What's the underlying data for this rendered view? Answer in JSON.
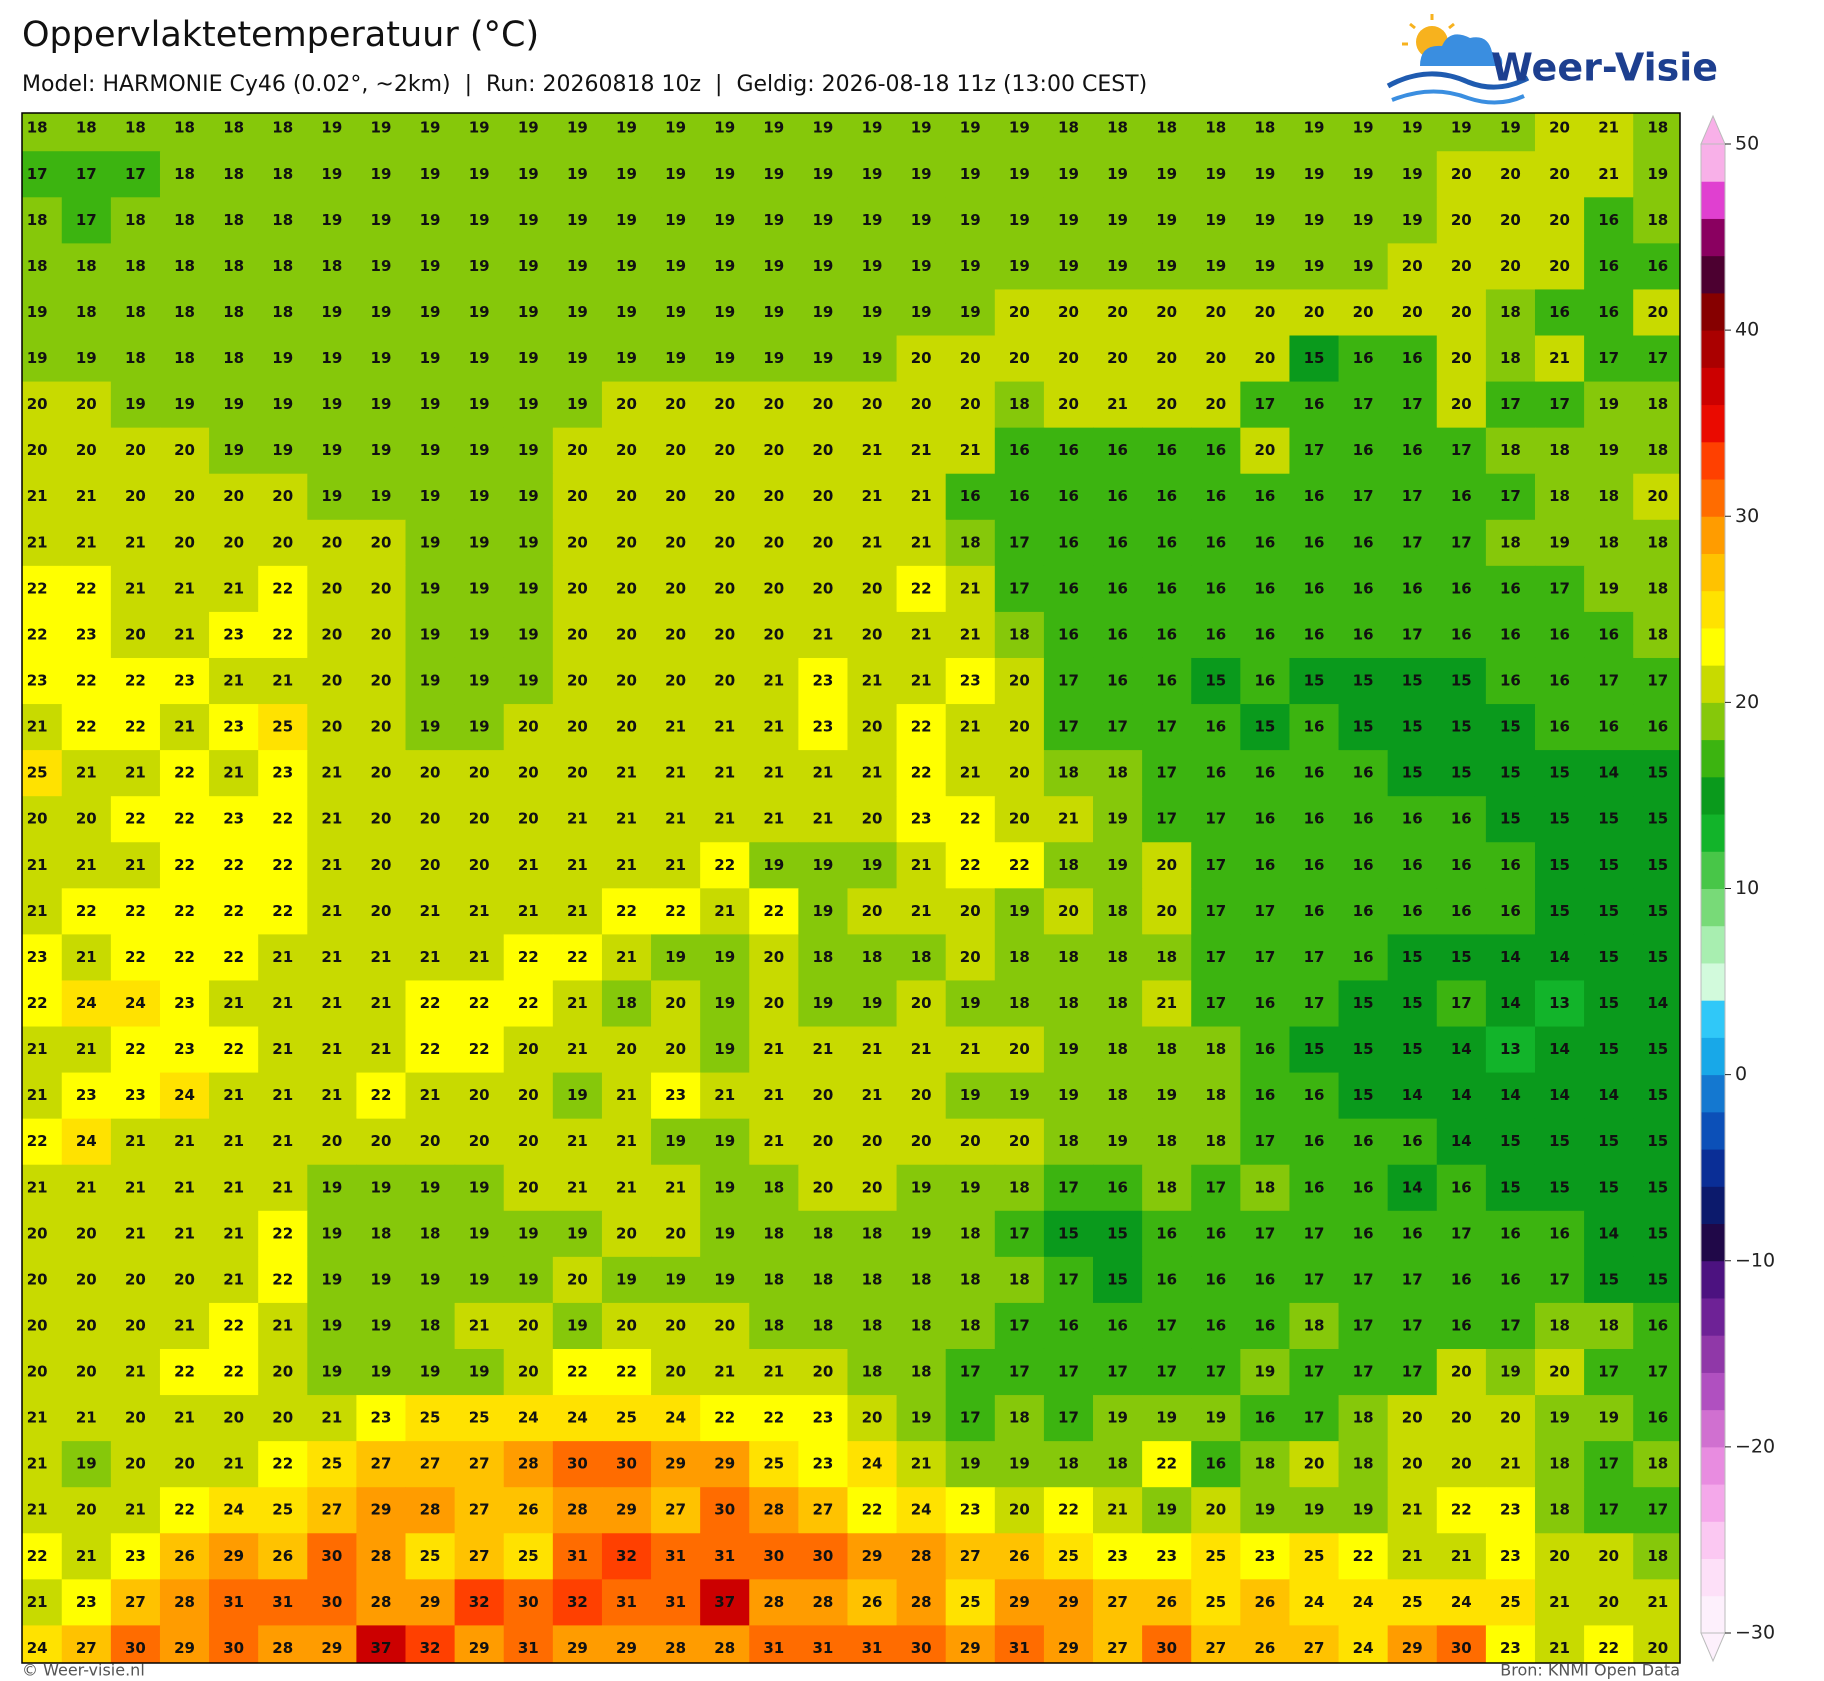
{
  "header": {
    "title": "Oppervlaktetemperatuur (°C)",
    "subtitle": "Model: HARMONIE Cy46 (0.02°, ~2km)  |  Run: 20260818 10z  |  Geldig: 2026-08-18 11z (13:00 CEST)"
  },
  "logo": {
    "text": "Weer-Visie"
  },
  "map": {
    "rows": [
      [
        18,
        18,
        18,
        18,
        18,
        18,
        19,
        19,
        19,
        19,
        19,
        19,
        19,
        19,
        19,
        19,
        19,
        19,
        19,
        19,
        19,
        18,
        18,
        18,
        18,
        18,
        19,
        19,
        19,
        19,
        19,
        20,
        21,
        18
      ],
      [
        17,
        17,
        17,
        18,
        18,
        18,
        19,
        19,
        19,
        19,
        19,
        19,
        19,
        19,
        19,
        19,
        19,
        19,
        19,
        19,
        19,
        19,
        19,
        19,
        19,
        19,
        19,
        19,
        19,
        20,
        20,
        20,
        21,
        19
      ],
      [
        18,
        17,
        18,
        18,
        18,
        18,
        19,
        19,
        19,
        19,
        19,
        19,
        19,
        19,
        19,
        19,
        19,
        19,
        19,
        19,
        19,
        19,
        19,
        19,
        19,
        19,
        19,
        19,
        19,
        20,
        20,
        20,
        16,
        18
      ],
      [
        18,
        18,
        18,
        18,
        18,
        18,
        18,
        19,
        19,
        19,
        19,
        19,
        19,
        19,
        19,
        19,
        19,
        19,
        19,
        19,
        19,
        19,
        19,
        19,
        19,
        19,
        19,
        19,
        20,
        20,
        20,
        20,
        16,
        16
      ],
      [
        19,
        18,
        18,
        18,
        18,
        18,
        19,
        19,
        19,
        19,
        19,
        19,
        19,
        19,
        19,
        19,
        19,
        19,
        19,
        19,
        20,
        20,
        20,
        20,
        20,
        20,
        20,
        20,
        20,
        20,
        18,
        16,
        16,
        20
      ],
      [
        19,
        19,
        18,
        18,
        18,
        19,
        19,
        19,
        19,
        19,
        19,
        19,
        19,
        19,
        19,
        19,
        19,
        19,
        20,
        20,
        20,
        20,
        20,
        20,
        20,
        20,
        15,
        16,
        16,
        20,
        18,
        21,
        17,
        17
      ],
      [
        20,
        20,
        19,
        19,
        19,
        19,
        19,
        19,
        19,
        19,
        19,
        19,
        20,
        20,
        20,
        20,
        20,
        20,
        20,
        20,
        18,
        20,
        21,
        20,
        20,
        17,
        16,
        17,
        17,
        20,
        17,
        17,
        19,
        18
      ],
      [
        20,
        20,
        20,
        20,
        19,
        19,
        19,
        19,
        19,
        19,
        19,
        20,
        20,
        20,
        20,
        20,
        20,
        21,
        21,
        21,
        16,
        16,
        16,
        16,
        16,
        20,
        17,
        16,
        16,
        17,
        18,
        18,
        19,
        18
      ],
      [
        21,
        21,
        20,
        20,
        20,
        20,
        19,
        19,
        19,
        19,
        19,
        20,
        20,
        20,
        20,
        20,
        20,
        21,
        21,
        16,
        16,
        16,
        16,
        16,
        16,
        16,
        16,
        17,
        17,
        16,
        17,
        18,
        18,
        20
      ],
      [
        21,
        21,
        21,
        20,
        20,
        20,
        20,
        20,
        19,
        19,
        19,
        20,
        20,
        20,
        20,
        20,
        20,
        21,
        21,
        18,
        17,
        16,
        16,
        16,
        16,
        16,
        16,
        16,
        17,
        17,
        18,
        19,
        18,
        18
      ],
      [
        22,
        22,
        21,
        21,
        21,
        22,
        20,
        20,
        19,
        19,
        19,
        20,
        20,
        20,
        20,
        20,
        20,
        20,
        22,
        21,
        17,
        16,
        16,
        16,
        16,
        16,
        16,
        16,
        16,
        16,
        16,
        17,
        19,
        18
      ],
      [
        22,
        23,
        20,
        21,
        23,
        22,
        20,
        20,
        19,
        19,
        19,
        20,
        20,
        20,
        20,
        20,
        21,
        20,
        21,
        21,
        18,
        16,
        16,
        16,
        16,
        16,
        16,
        16,
        17,
        16,
        16,
        16,
        16,
        18
      ],
      [
        23,
        22,
        22,
        23,
        21,
        21,
        20,
        20,
        19,
        19,
        19,
        20,
        20,
        20,
        20,
        21,
        23,
        21,
        21,
        23,
        20,
        17,
        16,
        16,
        15,
        16,
        15,
        15,
        15,
        15,
        16,
        16,
        17,
        17
      ],
      [
        21,
        22,
        22,
        21,
        23,
        25,
        20,
        20,
        19,
        19,
        20,
        20,
        20,
        21,
        21,
        21,
        23,
        20,
        22,
        21,
        20,
        17,
        17,
        17,
        16,
        15,
        16,
        15,
        15,
        15,
        15,
        16,
        16,
        16
      ],
      [
        25,
        21,
        21,
        22,
        21,
        23,
        21,
        20,
        20,
        20,
        20,
        20,
        21,
        21,
        21,
        21,
        21,
        21,
        22,
        21,
        20,
        18,
        18,
        17,
        16,
        16,
        16,
        16,
        15,
        15,
        15,
        15,
        14,
        15
      ],
      [
        20,
        20,
        22,
        22,
        23,
        22,
        21,
        20,
        20,
        20,
        20,
        21,
        21,
        21,
        21,
        21,
        21,
        20,
        23,
        22,
        20,
        21,
        19,
        17,
        17,
        16,
        16,
        16,
        16,
        16,
        15,
        15,
        15,
        15
      ],
      [
        21,
        21,
        21,
        22,
        22,
        22,
        21,
        20,
        20,
        20,
        21,
        21,
        21,
        21,
        22,
        19,
        19,
        19,
        21,
        22,
        22,
        18,
        19,
        20,
        17,
        16,
        16,
        16,
        16,
        16,
        16,
        15,
        15,
        15
      ],
      [
        21,
        22,
        22,
        22,
        22,
        22,
        21,
        20,
        21,
        21,
        21,
        21,
        22,
        22,
        21,
        22,
        19,
        20,
        21,
        20,
        19,
        20,
        18,
        20,
        17,
        17,
        16,
        16,
        16,
        16,
        16,
        15,
        15,
        15
      ],
      [
        23,
        21,
        22,
        22,
        22,
        21,
        21,
        21,
        21,
        21,
        22,
        22,
        21,
        19,
        19,
        20,
        18,
        18,
        18,
        20,
        18,
        18,
        18,
        18,
        17,
        17,
        17,
        16,
        15,
        15,
        14,
        14,
        15,
        15
      ],
      [
        22,
        24,
        24,
        23,
        21,
        21,
        21,
        21,
        22,
        22,
        22,
        21,
        18,
        20,
        19,
        20,
        19,
        19,
        20,
        19,
        18,
        18,
        18,
        21,
        17,
        16,
        17,
        15,
        15,
        17,
        14,
        13,
        15,
        14
      ],
      [
        21,
        21,
        22,
        23,
        22,
        21,
        21,
        21,
        22,
        22,
        20,
        21,
        20,
        20,
        19,
        21,
        21,
        21,
        21,
        21,
        20,
        19,
        18,
        18,
        18,
        16,
        15,
        15,
        15,
        14,
        13,
        14,
        15,
        15
      ],
      [
        21,
        23,
        23,
        24,
        21,
        21,
        21,
        22,
        21,
        20,
        20,
        19,
        21,
        23,
        21,
        21,
        20,
        21,
        20,
        19,
        19,
        19,
        18,
        19,
        18,
        16,
        16,
        15,
        14,
        14,
        14,
        14,
        14,
        15
      ],
      [
        22,
        24,
        21,
        21,
        21,
        21,
        20,
        20,
        20,
        20,
        20,
        21,
        21,
        19,
        19,
        21,
        20,
        20,
        20,
        20,
        20,
        18,
        19,
        18,
        18,
        17,
        16,
        16,
        16,
        14,
        15,
        15,
        15,
        15
      ],
      [
        21,
        21,
        21,
        21,
        21,
        21,
        19,
        19,
        19,
        19,
        20,
        21,
        21,
        21,
        19,
        18,
        20,
        20,
        19,
        19,
        18,
        17,
        16,
        18,
        17,
        18,
        16,
        16,
        14,
        16,
        15,
        15,
        15,
        15
      ],
      [
        20,
        20,
        21,
        21,
        21,
        22,
        19,
        18,
        18,
        19,
        19,
        19,
        20,
        20,
        19,
        18,
        18,
        18,
        19,
        18,
        17,
        15,
        15,
        16,
        16,
        17,
        17,
        16,
        16,
        17,
        16,
        16,
        14,
        15
      ],
      [
        20,
        20,
        20,
        20,
        21,
        22,
        19,
        19,
        19,
        19,
        19,
        20,
        19,
        19,
        19,
        18,
        18,
        18,
        18,
        18,
        18,
        17,
        15,
        16,
        16,
        16,
        17,
        17,
        17,
        16,
        16,
        17,
        15,
        15
      ],
      [
        20,
        20,
        20,
        21,
        22,
        21,
        19,
        19,
        18,
        21,
        20,
        19,
        20,
        20,
        20,
        18,
        18,
        18,
        18,
        18,
        17,
        16,
        16,
        17,
        16,
        16,
        18,
        17,
        17,
        16,
        17,
        18,
        18,
        16
      ],
      [
        20,
        20,
        21,
        22,
        22,
        20,
        19,
        19,
        19,
        19,
        20,
        22,
        22,
        20,
        21,
        21,
        20,
        18,
        18,
        17,
        17,
        17,
        17,
        17,
        17,
        19,
        17,
        17,
        17,
        20,
        19,
        20,
        17,
        17
      ],
      [
        21,
        21,
        20,
        21,
        20,
        20,
        21,
        23,
        25,
        25,
        24,
        24,
        25,
        24,
        22,
        22,
        23,
        20,
        19,
        17,
        18,
        17,
        19,
        19,
        19,
        16,
        17,
        18,
        20,
        20,
        20,
        19,
        19,
        16
      ],
      [
        21,
        19,
        20,
        20,
        21,
        22,
        25,
        27,
        27,
        27,
        28,
        30,
        30,
        29,
        29,
        25,
        23,
        24,
        21,
        19,
        19,
        18,
        18,
        22,
        16,
        18,
        20,
        18,
        20,
        20,
        21,
        18,
        17,
        18
      ],
      [
        21,
        20,
        21,
        22,
        24,
        25,
        27,
        29,
        28,
        27,
        26,
        28,
        29,
        27,
        30,
        28,
        27,
        22,
        24,
        23,
        20,
        22,
        21,
        19,
        20,
        19,
        19,
        19,
        21,
        22,
        23,
        18,
        17,
        17
      ],
      [
        22,
        21,
        23,
        26,
        29,
        26,
        30,
        28,
        25,
        27,
        25,
        31,
        32,
        31,
        31,
        30,
        30,
        29,
        28,
        27,
        26,
        25,
        23,
        23,
        25,
        23,
        25,
        22,
        21,
        21,
        23,
        20,
        20,
        18
      ],
      [
        21,
        23,
        27,
        28,
        31,
        31,
        30,
        28,
        29,
        32,
        30,
        32,
        31,
        31,
        37,
        28,
        28,
        26,
        28,
        25,
        29,
        29,
        27,
        26,
        25,
        26,
        24,
        24,
        25,
        24,
        25,
        21,
        20,
        21
      ],
      [
        24,
        27,
        30,
        29,
        30,
        28,
        29,
        37,
        32,
        29,
        31,
        29,
        29,
        28,
        28,
        31,
        31,
        31,
        30,
        29,
        31,
        29,
        27,
        30,
        27,
        26,
        27,
        24,
        29,
        30,
        23,
        21,
        22,
        20
      ]
    ]
  },
  "colorbar": {
    "lim": [
      -30,
      50
    ],
    "ticks": [
      50,
      40,
      30,
      20,
      10,
      0,
      {
        "value": -10,
        "label": "−10"
      },
      {
        "value": -20,
        "label": "−20"
      },
      {
        "value": -30,
        "label": "−30"
      }
    ],
    "colors": [
      "#fdf0fc",
      "#fde0f8",
      "#fbc8f2",
      "#f4a8ea",
      "#e88ce0",
      "#d070d0",
      "#b050c0",
      "#9038a8",
      "#6e2296",
      "#4c1280",
      "#200848",
      "#0c1a6c",
      "#0a2e96",
      "#0c50b8",
      "#1478d0",
      "#18a8e8",
      "#30c8f8",
      "#d2fadc",
      "#a8eeb0",
      "#78da78",
      "#48c648",
      "#12b42a",
      "#0a9a1c",
      "#3cb410",
      "#86c80a",
      "#c8da00",
      "#ffff00",
      "#ffe200",
      "#ffc200",
      "#ff9c00",
      "#ff6c00",
      "#ff4000",
      "#ea0a00",
      "#cc0000",
      "#aa0000",
      "#860000",
      "#4c0030",
      "#8a0060",
      "#e040d0",
      "#f8b0e8"
    ]
  },
  "footer": {
    "left": "© Weer-visie.nl",
    "right": "Bron: KNMI Open Data"
  }
}
